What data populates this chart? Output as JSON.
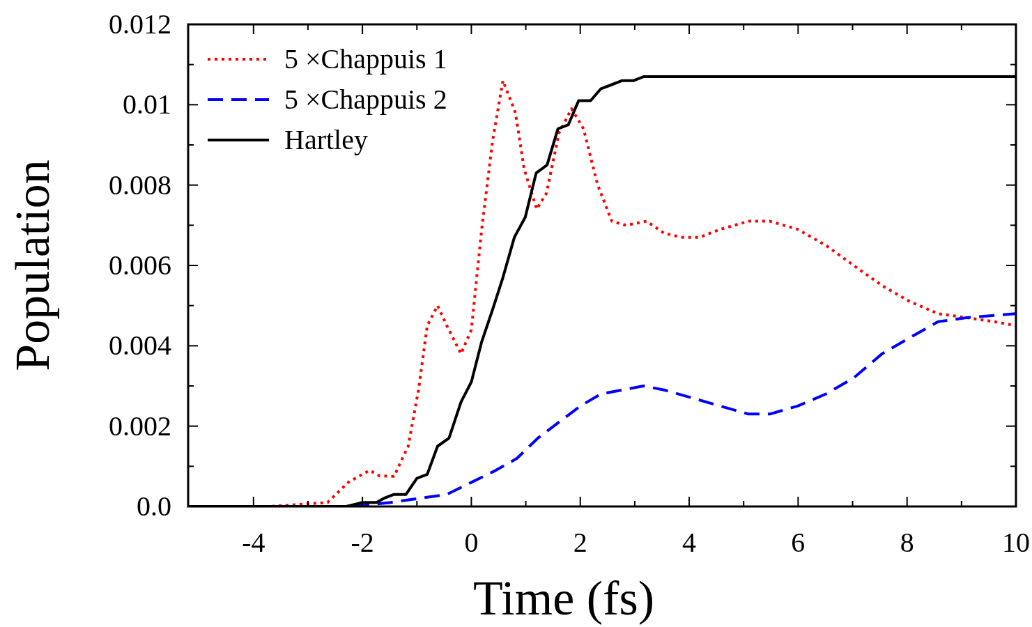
{
  "chart_data": {
    "type": "line",
    "xlabel": "Time (fs)",
    "ylabel": "Population",
    "xlim": [
      -5.2,
      10
    ],
    "ylim": [
      0,
      0.012
    ],
    "xticks": [
      -4,
      -2,
      0,
      2,
      4,
      6,
      8,
      10,
      {
        "value": -3,
        "label": null
      },
      {
        "value": -1,
        "label": null
      },
      {
        "value": 1,
        "label": null
      },
      {
        "value": 3,
        "label": null
      },
      {
        "value": 5,
        "label": null
      },
      {
        "value": 7,
        "label": null
      },
      {
        "value": 9,
        "label": null
      }
    ],
    "yticks": [
      {
        "value": 0,
        "label": "0.0"
      },
      0.002,
      0.004,
      0.006,
      0.008,
      {
        "value": 0.01,
        "label": "0.01"
      },
      0.012,
      {
        "value": 0.001,
        "label": null
      },
      {
        "value": 0.003,
        "label": null
      },
      {
        "value": 0.005,
        "label": null
      },
      {
        "value": 0.007,
        "label": null
      },
      {
        "value": 0.009,
        "label": null
      },
      {
        "value": 0.011,
        "label": null
      }
    ],
    "grid": false,
    "legend": "top left",
    "series": [
      {
        "name": "5 ×Chappuis 1",
        "color": "#ff0000",
        "line_style": "dotted",
        "x": [
          -5.2,
          -3.7,
          -2.64,
          -2.26,
          -1.87,
          -1.68,
          -1.42,
          -1.16,
          -0.97,
          -0.81,
          -0.62,
          -0.45,
          -0.19,
          0,
          0.19,
          0.39,
          0.58,
          0.81,
          0.97,
          1.2,
          1.38,
          1.61,
          1.84,
          2.06,
          2.32,
          2.58,
          2.84,
          3.22,
          3.54,
          3.87,
          4.19,
          4.57,
          5.09,
          5.48,
          5.99,
          6.51,
          7.02,
          7.54,
          8.05,
          8.57,
          9.09,
          9.6,
          10
        ],
        "values": [
          0,
          0,
          0.0001,
          0.0006,
          0.0009,
          0.00076,
          0.00075,
          0.0015,
          0.0029,
          0.0045,
          0.005,
          0.0045,
          0.0038,
          0.0044,
          0.0069,
          0.0091,
          0.0106,
          0.0098,
          0.0084,
          0.0074,
          0.0078,
          0.0093,
          0.0099,
          0.0094,
          0.008,
          0.0071,
          0.007,
          0.0071,
          0.0068,
          0.0067,
          0.0067,
          0.0069,
          0.0071,
          0.0071,
          0.0069,
          0.0065,
          0.006,
          0.0055,
          0.0051,
          0.0048,
          0.0047,
          0.0046,
          0.0045
        ]
      },
      {
        "name": "5 ×Chappuis 2",
        "color": "#0000ff",
        "line_style": "dashed",
        "x": [
          -5.2,
          -2.2,
          -1.48,
          -0.97,
          -0.45,
          0,
          0.45,
          0.84,
          1.22,
          1.61,
          2,
          2.38,
          2.77,
          3.16,
          3.54,
          4.06,
          4.57,
          5.09,
          5.48,
          5.99,
          6.51,
          7.02,
          7.54,
          8.05,
          8.57,
          9.09,
          10
        ],
        "values": [
          0,
          0,
          0.0001,
          0.0002,
          0.0003,
          0.0006,
          0.0009,
          0.0012,
          0.0017,
          0.0021,
          0.0025,
          0.0028,
          0.0029,
          0.003,
          0.0029,
          0.0027,
          0.0025,
          0.0023,
          0.0023,
          0.0025,
          0.0028,
          0.0032,
          0.0038,
          0.0042,
          0.0046,
          0.0047,
          0.0048
        ]
      },
      {
        "name": "Hartley",
        "color": "#000000",
        "line_style": "solid",
        "x": [
          -5.2,
          -2.3,
          -2,
          -1.74,
          -1.61,
          -1.42,
          -1.2,
          -1.0,
          -0.81,
          -0.62,
          -0.41,
          -0.19,
          0,
          0.19,
          0.39,
          0.58,
          0.79,
          0.99,
          1.19,
          1.39,
          1.59,
          1.78,
          1.97,
          2.19,
          2.38,
          2.58,
          2.77,
          2.98,
          3.17,
          10
        ],
        "values": [
          0,
          0,
          0.0001,
          0.0001,
          0.0002,
          0.0003,
          0.0003,
          0.0007,
          0.0008,
          0.0015,
          0.0017,
          0.0026,
          0.0031,
          0.0041,
          0.0049,
          0.0057,
          0.0067,
          0.0072,
          0.0083,
          0.0085,
          0.0094,
          0.0095,
          0.0101,
          0.0101,
          0.0104,
          0.0105,
          0.0106,
          0.0106,
          0.0107,
          0.0107
        ]
      }
    ]
  }
}
